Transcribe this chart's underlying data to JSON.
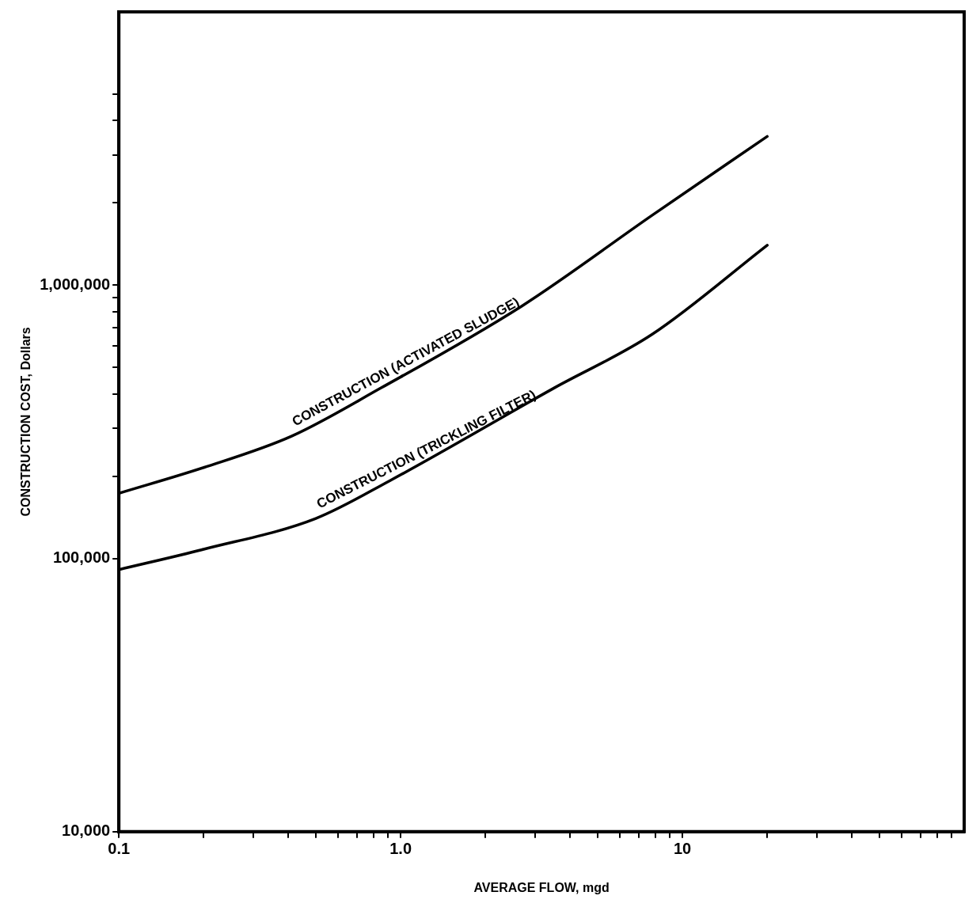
{
  "chart_data": {
    "type": "line",
    "xlabel": "AVERAGE FLOW, mgd",
    "ylabel": "CONSTRUCTION COST, Dollars",
    "log": "xy",
    "grid": false,
    "legend": false,
    "marker": "none",
    "line_style": "solid",
    "xlim": [
      0.1,
      100
    ],
    "ylim": [
      10000,
      10000000
    ],
    "xticks": [
      {
        "value": 0.1,
        "label": "0.1"
      },
      {
        "value": 0.2,
        "label": null
      },
      {
        "value": 0.3,
        "label": null
      },
      {
        "value": 0.4,
        "label": null
      },
      {
        "value": 0.5,
        "label": null
      },
      {
        "value": 0.6,
        "label": null
      },
      {
        "value": 0.7,
        "label": null
      },
      {
        "value": 0.8,
        "label": null
      },
      {
        "value": 0.9,
        "label": null
      },
      {
        "value": 1,
        "label": "1.0"
      },
      {
        "value": 2,
        "label": null
      },
      {
        "value": 3,
        "label": null
      },
      {
        "value": 4,
        "label": null
      },
      {
        "value": 5,
        "label": null
      },
      {
        "value": 6,
        "label": null
      },
      {
        "value": 7,
        "label": null
      },
      {
        "value": 8,
        "label": null
      },
      {
        "value": 9,
        "label": null
      },
      {
        "value": 10,
        "label": "10"
      },
      {
        "value": 20,
        "label": null
      },
      {
        "value": 30,
        "label": null
      },
      {
        "value": 40,
        "label": null
      },
      {
        "value": 50,
        "label": null
      },
      {
        "value": 60,
        "label": null
      },
      {
        "value": 70,
        "label": null
      },
      {
        "value": 80,
        "label": null
      },
      {
        "value": 90,
        "label": null
      }
    ],
    "yticks": [
      {
        "value": 10000,
        "label": "10,000"
      },
      {
        "value": 100000,
        "label": "100,000"
      },
      {
        "value": 200000,
        "label": null
      },
      {
        "value": 300000,
        "label": null
      },
      {
        "value": 400000,
        "label": null
      },
      {
        "value": 500000,
        "label": null
      },
      {
        "value": 600000,
        "label": null
      },
      {
        "value": 700000,
        "label": null
      },
      {
        "value": 800000,
        "label": null
      },
      {
        "value": 900000,
        "label": null
      },
      {
        "value": 1000000,
        "label": "1,000,000"
      },
      {
        "value": 2000000,
        "label": null
      },
      {
        "value": 3000000,
        "label": null
      },
      {
        "value": 4000000,
        "label": null
      },
      {
        "value": 5000000,
        "label": null
      }
    ],
    "series": [
      {
        "name": "CONSTRUCTION (ACTIVATED SLUDGE)",
        "color": "#000000",
        "x": [
          0.1,
          0.2,
          0.41,
          0.85,
          2.7,
          7.8,
          20
        ],
        "values": [
          173000,
          215000,
          280000,
          420000,
          840000,
          1800000,
          3500000
        ]
      },
      {
        "name": "CONSTRUCTION (TRICKLING FILTER)",
        "color": "#000000",
        "x": [
          0.1,
          0.2,
          0.5,
          0.92,
          3.5,
          7.8,
          20
        ],
        "values": [
          91000,
          108000,
          140000,
          193000,
          420000,
          660000,
          1400000
        ]
      }
    ]
  }
}
